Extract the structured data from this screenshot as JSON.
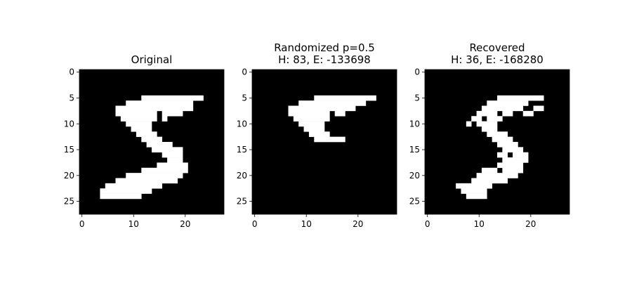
{
  "chart_data": [
    {
      "type": "heatmap",
      "title": "Original",
      "subtitle": "",
      "grid_size": 28,
      "colormap": {
        "0": "#000000",
        "1": "#ffffff"
      },
      "xticks": [
        0,
        10,
        20
      ],
      "yticks": [
        0,
        5,
        10,
        15,
        20,
        25
      ],
      "xlim": [
        -0.5,
        27.5
      ],
      "ylim": [
        27.5,
        -0.5
      ],
      "white_runs": [
        [
          5,
          12,
          23
        ],
        [
          6,
          9,
          21
        ],
        [
          7,
          7,
          21
        ],
        [
          8,
          7,
          14
        ],
        [
          8,
          16,
          19
        ],
        [
          9,
          8,
          14
        ],
        [
          9,
          16,
          16
        ],
        [
          10,
          9,
          13
        ],
        [
          11,
          10,
          13
        ],
        [
          12,
          11,
          14
        ],
        [
          13,
          12,
          15
        ],
        [
          14,
          13,
          17
        ],
        [
          15,
          14,
          19
        ],
        [
          16,
          16,
          19
        ],
        [
          17,
          17,
          19
        ],
        [
          18,
          15,
          20
        ],
        [
          19,
          12,
          20
        ],
        [
          20,
          9,
          19
        ],
        [
          21,
          7,
          18
        ],
        [
          22,
          5,
          15
        ],
        [
          23,
          4,
          13
        ],
        [
          24,
          4,
          11
        ]
      ]
    },
    {
      "type": "heatmap",
      "title": "Randomized p=0.5",
      "subtitle": "H: 83, E: -133698",
      "grid_size": 28,
      "colormap": {
        "0": "#000000",
        "1": "#ffffff"
      },
      "xticks": [
        0,
        10,
        20
      ],
      "yticks": [
        0,
        5,
        10,
        15,
        20,
        25
      ],
      "xlim": [
        -0.5,
        27.5
      ],
      "ylim": [
        27.5,
        -0.5
      ],
      "white_runs": [
        [
          5,
          12,
          23
        ],
        [
          6,
          9,
          21
        ],
        [
          7,
          7,
          19
        ],
        [
          8,
          7,
          14
        ],
        [
          8,
          16,
          17
        ],
        [
          9,
          8,
          14
        ],
        [
          10,
          9,
          13
        ],
        [
          11,
          10,
          13
        ],
        [
          12,
          11,
          14
        ],
        [
          13,
          12,
          17
        ]
      ]
    },
    {
      "type": "heatmap",
      "title": "Recovered",
      "subtitle": "H: 36, E: -168280",
      "grid_size": 28,
      "colormap": {
        "0": "#000000",
        "1": "#ffffff"
      },
      "xticks": [
        0,
        10,
        20
      ],
      "yticks": [
        0,
        5,
        10,
        15,
        20,
        25
      ],
      "xlim": [
        -0.5,
        27.5
      ],
      "ylim": [
        27.5,
        -0.5
      ],
      "white_runs": [
        [
          5,
          14,
          22
        ],
        [
          6,
          12,
          19
        ],
        [
          7,
          11,
          18
        ],
        [
          7,
          21,
          22
        ],
        [
          8,
          10,
          13
        ],
        [
          8,
          15,
          16
        ],
        [
          8,
          19,
          20
        ],
        [
          9,
          9,
          10
        ],
        [
          9,
          12,
          14
        ],
        [
          10,
          8,
          8
        ],
        [
          10,
          10,
          13
        ],
        [
          11,
          11,
          13
        ],
        [
          12,
          12,
          15
        ],
        [
          13,
          13,
          16
        ],
        [
          14,
          14,
          17
        ],
        [
          15,
          15,
          18
        ],
        [
          16,
          14,
          15
        ],
        [
          16,
          17,
          19
        ],
        [
          17,
          15,
          19
        ],
        [
          18,
          14,
          18
        ],
        [
          19,
          11,
          13
        ],
        [
          19,
          15,
          18
        ],
        [
          20,
          10,
          17
        ],
        [
          21,
          9,
          15
        ],
        [
          22,
          6,
          12
        ],
        [
          23,
          7,
          11
        ],
        [
          24,
          8,
          11
        ]
      ]
    }
  ]
}
